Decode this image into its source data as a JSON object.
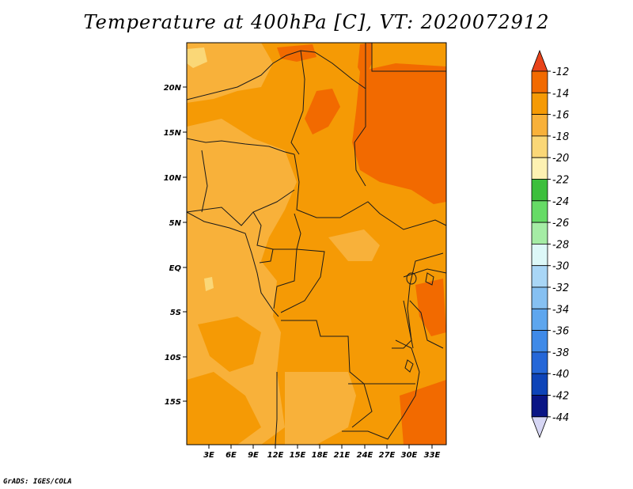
{
  "title": "Temperature at 400hPa [C], VT: 2020072912",
  "credit": "GrADS: IGES/COLA",
  "map": {
    "lat_labels": [
      "20N",
      "15N",
      "10N",
      "5N",
      "EQ",
      "5S",
      "10S",
      "15S"
    ],
    "lon_labels": [
      "3E",
      "6E",
      "9E",
      "12E",
      "15E",
      "18E",
      "21E",
      "24E",
      "27E",
      "30E",
      "33E"
    ]
  },
  "colorbar": {
    "labels": [
      "-12",
      "-14",
      "-16",
      "-18",
      "-20",
      "-22",
      "-24",
      "-26",
      "-28",
      "-30",
      "-32",
      "-34",
      "-36",
      "-38",
      "-40",
      "-42",
      "-44"
    ],
    "colors": [
      "#e8431a",
      "#f26a00",
      "#f59a05",
      "#f8b13a",
      "#fad777",
      "#fdf1b2",
      "#3cbf3c",
      "#66db66",
      "#a5eca5",
      "#ddf8f8",
      "#a9d6f6",
      "#86c0f2",
      "#5ea6ee",
      "#3f8ae8",
      "#2567d8",
      "#0e44b8",
      "#0a1585",
      "#d6d6f4"
    ]
  },
  "colors": {
    "field_dark": "#f26a00",
    "field_mid": "#f59a05",
    "field_light": "#f8b13a",
    "field_pale": "#fad777",
    "border": "#1a1a1a"
  }
}
